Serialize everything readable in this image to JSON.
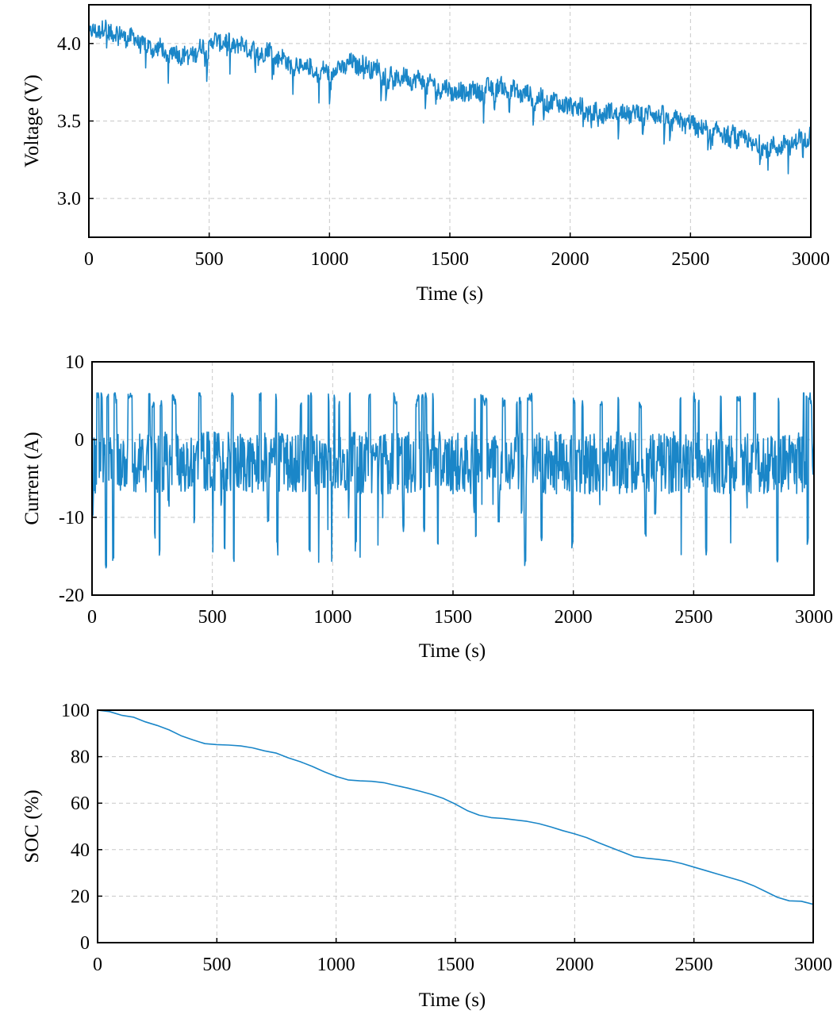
{
  "figure": {
    "colors": {
      "series": "#1a86c8",
      "grid": "#c8c8c8",
      "axis": "#000000"
    }
  },
  "chart_data": [
    {
      "type": "line",
      "xlabel": "Time (s)",
      "ylabel": "Voltage (V)",
      "xlim": [
        0,
        3000
      ],
      "ylim": [
        2.75,
        4.25
      ],
      "xticks": [
        0,
        500,
        1000,
        1500,
        2000,
        2500,
        3000
      ],
      "xtick_labels": [
        "0",
        "500",
        "1000",
        "1500",
        "2000",
        "2500",
        "3000"
      ],
      "yticks": [
        3.0,
        3.5,
        4.0
      ],
      "ytick_labels": [
        "3.0",
        "3.5",
        "4.0"
      ],
      "grid": true,
      "series": [
        {
          "approximate": true,
          "x": [
            0,
            50,
            100,
            150,
            200,
            250,
            300,
            350,
            400,
            450,
            500,
            550,
            600,
            650,
            700,
            750,
            800,
            850,
            900,
            950,
            1000,
            1050,
            1100,
            1150,
            1200,
            1250,
            1300,
            1350,
            1400,
            1450,
            1500,
            1550,
            1600,
            1650,
            1700,
            1750,
            1800,
            1850,
            1900,
            1950,
            2000,
            2050,
            2100,
            2150,
            2200,
            2250,
            2300,
            2350,
            2400,
            2450,
            2500,
            2550,
            2600,
            2650,
            2700,
            2750,
            2800,
            2850,
            2900,
            2950,
            3000
          ],
          "y": [
            4.05,
            4.1,
            4.08,
            4.05,
            4.02,
            3.98,
            3.96,
            3.94,
            3.93,
            3.95,
            4.0,
            4.02,
            4.0,
            3.98,
            3.95,
            3.95,
            3.9,
            3.87,
            3.84,
            3.82,
            3.82,
            3.85,
            3.87,
            3.86,
            3.83,
            3.8,
            3.78,
            3.77,
            3.75,
            3.72,
            3.7,
            3.68,
            3.69,
            3.71,
            3.72,
            3.7,
            3.68,
            3.65,
            3.63,
            3.62,
            3.6,
            3.58,
            3.55,
            3.55,
            3.56,
            3.55,
            3.55,
            3.55,
            3.52,
            3.5,
            3.48,
            3.45,
            3.43,
            3.42,
            3.4,
            3.36,
            3.34,
            3.33,
            3.35,
            3.38,
            3.42
          ],
          "ripple": 0.08
        }
      ]
    },
    {
      "type": "line",
      "xlabel": "Time (s)",
      "ylabel": "Current (A)",
      "xlim": [
        0,
        3000
      ],
      "ylim": [
        -20,
        10
      ],
      "xticks": [
        0,
        500,
        1000,
        1500,
        2000,
        2500,
        3000
      ],
      "xtick_labels": [
        "0",
        "500",
        "1000",
        "1500",
        "2000",
        "2500",
        "3000"
      ],
      "yticks": [
        -20,
        -10,
        0,
        10
      ],
      "ytick_labels": [
        "-20",
        "-10",
        "0",
        "10"
      ],
      "grid": true,
      "series": [
        {
          "approximate": true,
          "summary": {
            "max": 6,
            "min": -16.5,
            "typical_center": -3
          }
        }
      ]
    },
    {
      "type": "line",
      "xlabel": "Time (s)",
      "ylabel": "SOC (%)",
      "xlim": [
        0,
        3000
      ],
      "ylim": [
        0,
        100
      ],
      "xticks": [
        0,
        500,
        1000,
        1500,
        2000,
        2500,
        3000
      ],
      "xtick_labels": [
        "0",
        "500",
        "1000",
        "1500",
        "2000",
        "2500",
        "3000"
      ],
      "yticks": [
        0,
        20,
        40,
        60,
        80,
        100
      ],
      "ytick_labels": [
        "0",
        "20",
        "40",
        "60",
        "80",
        "100"
      ],
      "grid": true,
      "series": [
        {
          "x": [
            0,
            50,
            100,
            150,
            200,
            250,
            300,
            350,
            400,
            450,
            500,
            550,
            600,
            650,
            700,
            750,
            800,
            850,
            900,
            950,
            1000,
            1050,
            1100,
            1150,
            1200,
            1250,
            1300,
            1350,
            1400,
            1450,
            1500,
            1550,
            1600,
            1650,
            1700,
            1750,
            1800,
            1850,
            1900,
            1950,
            2000,
            2050,
            2100,
            2150,
            2200,
            2250,
            2300,
            2350,
            2400,
            2450,
            2500,
            2550,
            2600,
            2650,
            2700,
            2750,
            2800,
            2850,
            2900,
            2950,
            3000
          ],
          "y": [
            100,
            99.4,
            97.8,
            97,
            95,
            93.4,
            91.5,
            89,
            87.2,
            85.6,
            85.2,
            85,
            84.6,
            83.8,
            82.5,
            81.5,
            79.5,
            77.8,
            75.8,
            73.5,
            71.5,
            70,
            69.6,
            69.4,
            68.8,
            67.6,
            66.5,
            65.2,
            63.8,
            62,
            59.6,
            56.8,
            54.8,
            53.8,
            53.4,
            52.8,
            52.2,
            51.2,
            49.8,
            48.2,
            46.8,
            45.2,
            43,
            41,
            39,
            37,
            36.3,
            35.8,
            35.2,
            34,
            32.5,
            31,
            29.5,
            28,
            26.5,
            24.5,
            22,
            19.5,
            18,
            17.8,
            16.5
          ]
        }
      ]
    }
  ]
}
